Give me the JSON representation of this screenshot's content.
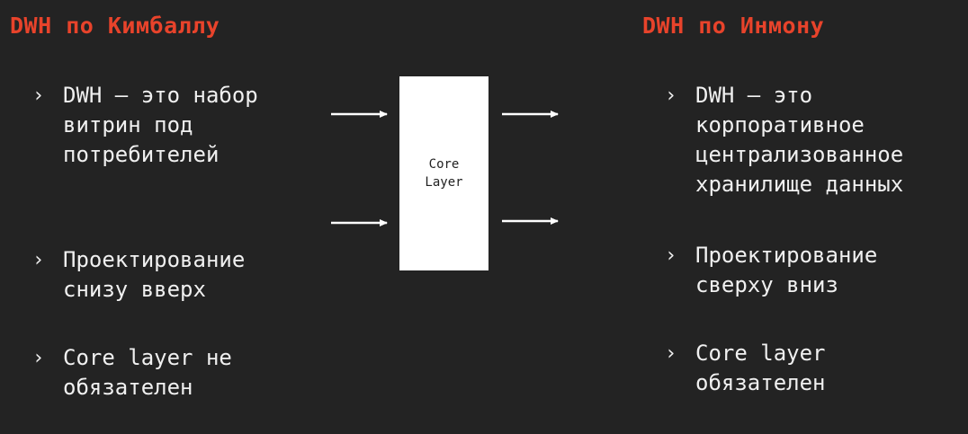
{
  "left": {
    "heading": "DWH по Кимбаллу",
    "bullets": [
      {
        "lines": [
          "DWH – это набор",
          "витрин под",
          "потребителей"
        ]
      },
      {
        "lines": [
          "Проектирование",
          "снизу вверх"
        ]
      },
      {
        "lines": [
          "Core layer не",
          "обязателен"
        ]
      }
    ]
  },
  "right": {
    "heading": "DWH по Инмону",
    "bullets": [
      {
        "lines": [
          "DWH – это",
          "корпоративное",
          "централизованное",
          "хранилище данных"
        ]
      },
      {
        "lines": [
          "Проектирование",
          "сверху вниз"
        ]
      },
      {
        "lines": [
          "Core layer",
          "обязателен"
        ]
      }
    ]
  },
  "diagram": {
    "box_lines": [
      "Core",
      "Layer"
    ],
    "box_color": "#ffffff",
    "arrow_color": "#ffffff"
  },
  "bullet_marker": "›",
  "colors": {
    "background": "#232323",
    "heading": "#e8432b",
    "text": "#f0f0f0"
  }
}
